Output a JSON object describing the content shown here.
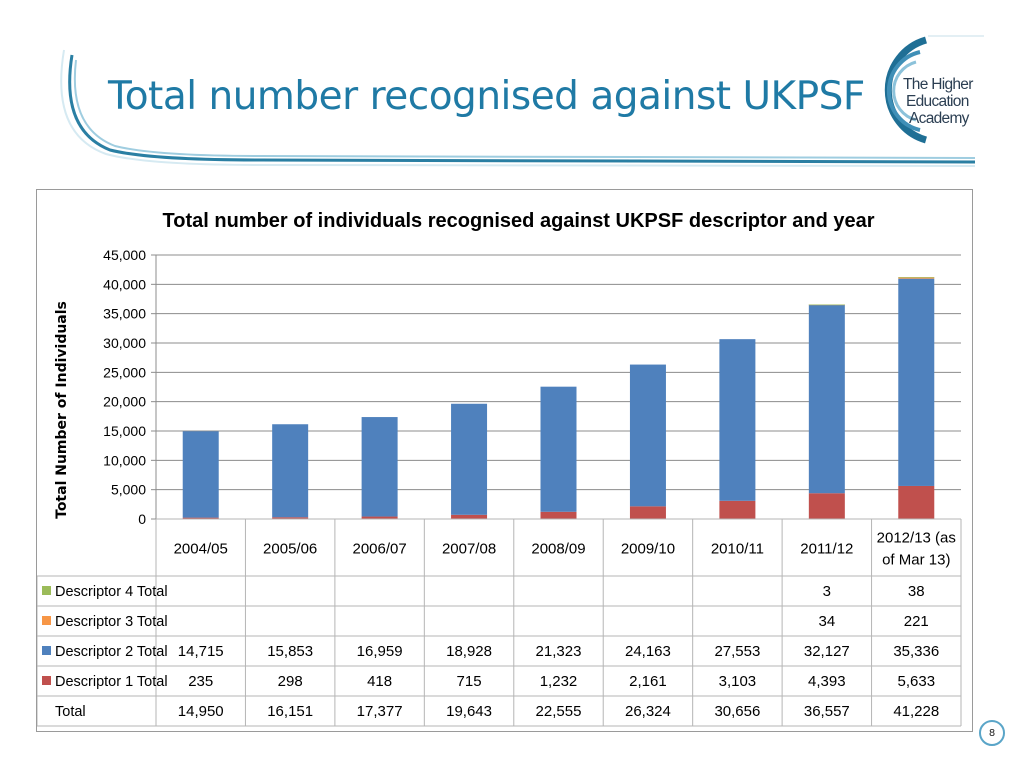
{
  "slide": {
    "title": "Total number recognised against UKPSF",
    "page_number": "8",
    "logo_lines": [
      "The Higher",
      "Education",
      "Academy"
    ]
  },
  "colors": {
    "title": "#1f7aa5",
    "descriptor_1": "#c0504d",
    "descriptor_2": "#4f81bd",
    "descriptor_3": "#f79646",
    "descriptor_4": "#9bbb59"
  },
  "chart_data": {
    "type": "bar",
    "stacked": true,
    "title": "Total number of individuals recognised against UKPSF descriptor and year",
    "ylabel": "Total Number of Individuals",
    "xlabel": "",
    "ylim": [
      0,
      45000
    ],
    "yticks": [
      "0",
      "5,000",
      "10,000",
      "15,000",
      "20,000",
      "25,000",
      "30,000",
      "35,000",
      "40,000",
      "45,000"
    ],
    "grid": true,
    "categories": [
      "2004/05",
      "2005/06",
      "2006/07",
      "2007/08",
      "2008/09",
      "2009/10",
      "2010/11",
      "2011/12",
      "2012/13 (as of Mar 13)"
    ],
    "category_lines": [
      [
        "2004/05"
      ],
      [
        "2005/06"
      ],
      [
        "2006/07"
      ],
      [
        "2007/08"
      ],
      [
        "2008/09"
      ],
      [
        "2009/10"
      ],
      [
        "2010/11"
      ],
      [
        "2011/12"
      ],
      [
        "2012/13 (as",
        "of Mar 13)"
      ]
    ],
    "series": [
      {
        "name": "Descriptor 1 Total",
        "color": "#c0504d",
        "values": [
          235,
          298,
          418,
          715,
          1232,
          2161,
          3103,
          4393,
          5633
        ]
      },
      {
        "name": "Descriptor 2 Total",
        "color": "#4f81bd",
        "values": [
          14715,
          15853,
          16959,
          18928,
          21323,
          24163,
          27553,
          32127,
          35336
        ]
      },
      {
        "name": "Descriptor 3 Total",
        "color": "#f79646",
        "values": [
          0,
          0,
          0,
          0,
          0,
          0,
          0,
          34,
          221
        ]
      },
      {
        "name": "Descriptor 4 Total",
        "color": "#9bbb59",
        "values": [
          0,
          0,
          0,
          0,
          0,
          0,
          0,
          3,
          38
        ]
      }
    ],
    "table": {
      "rows": [
        {
          "label": "Descriptor 4 Total",
          "swatch": "#9bbb59",
          "cells": [
            "",
            "",
            "",
            "",
            "",
            "",
            "",
            "3",
            "38"
          ]
        },
        {
          "label": "Descriptor 3 Total",
          "swatch": "#f79646",
          "cells": [
            "",
            "",
            "",
            "",
            "",
            "",
            "",
            "34",
            "221"
          ]
        },
        {
          "label": "Descriptor 2 Total",
          "swatch": "#4f81bd",
          "cells": [
            "14,715",
            "15,853",
            "16,959",
            "18,928",
            "21,323",
            "24,163",
            "27,553",
            "32,127",
            "35,336"
          ]
        },
        {
          "label": "Descriptor 1 Total",
          "swatch": "#c0504d",
          "cells": [
            "235",
            "298",
            "418",
            "715",
            "1,232",
            "2,161",
            "3,103",
            "4,393",
            "5,633"
          ]
        },
        {
          "label": "Total",
          "swatch": "",
          "cells": [
            "14,950",
            "16,151",
            "17,377",
            "19,643",
            "22,555",
            "26,324",
            "30,656",
            "36,557",
            "41,228"
          ]
        }
      ]
    }
  }
}
